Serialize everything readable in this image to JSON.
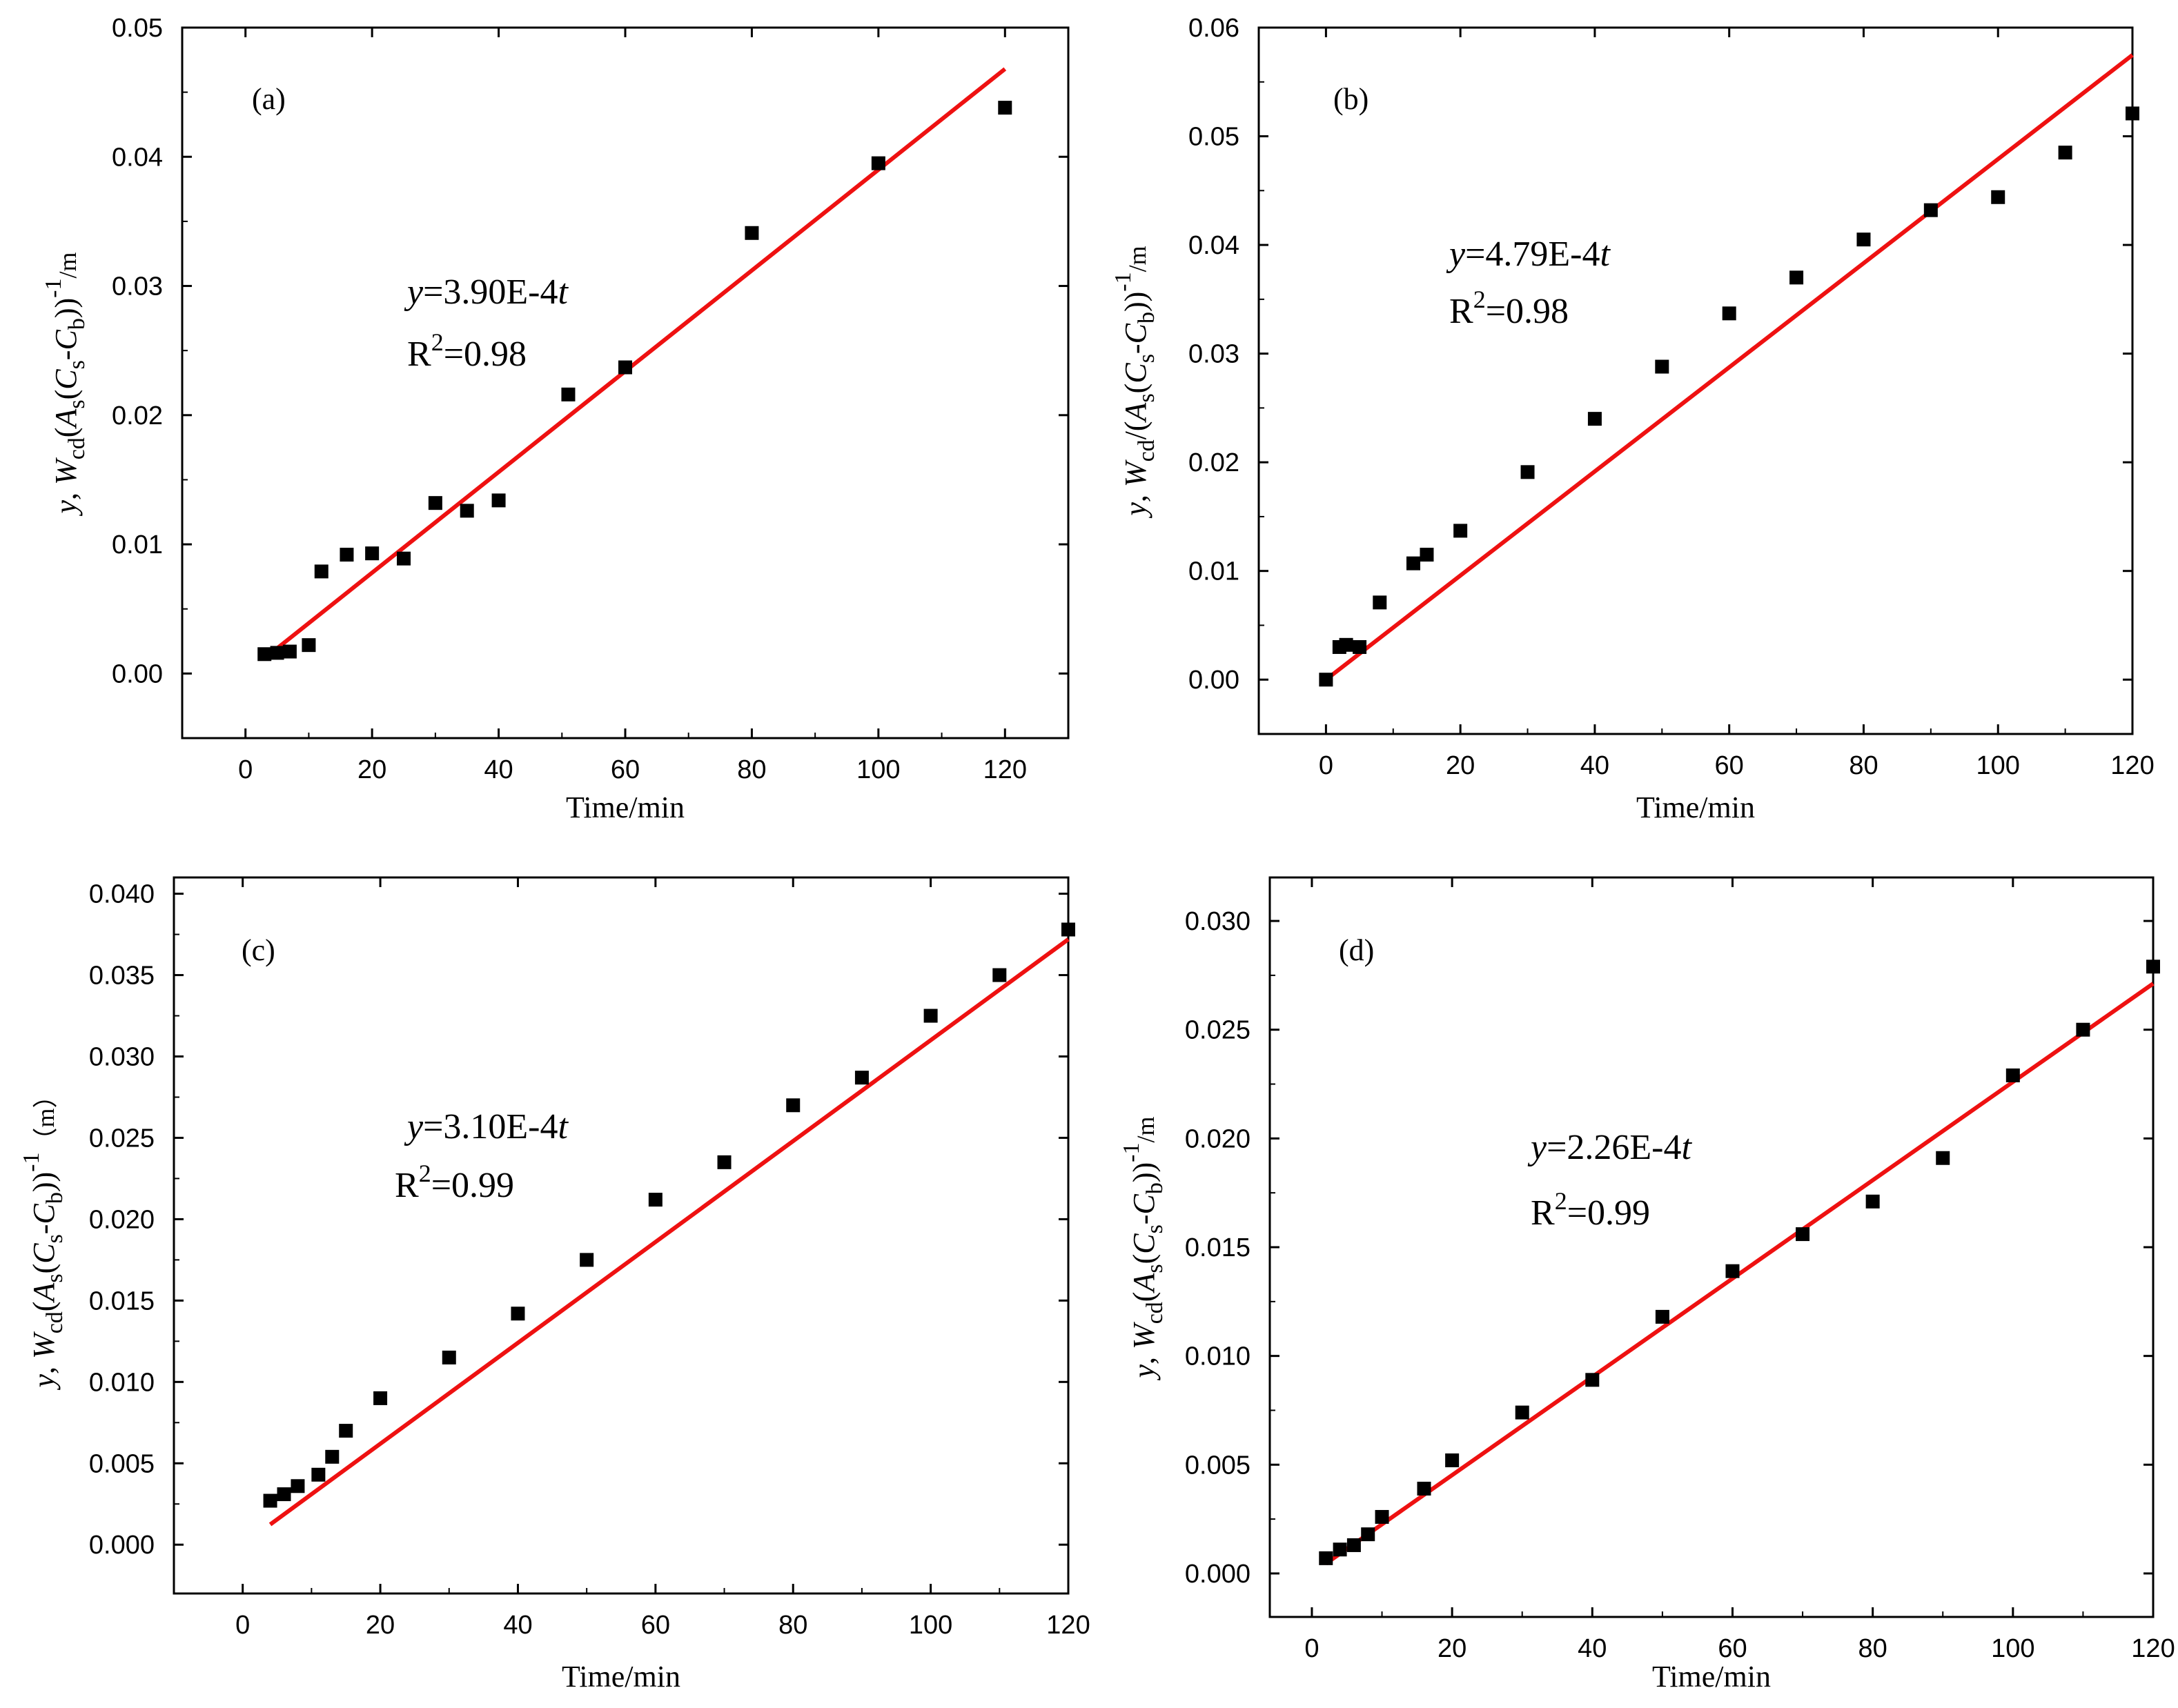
{
  "chart_data": [
    {
      "type": "scatter",
      "panel_label": "(a)",
      "xlabel": "Time/min",
      "ylabel": "y, W_cd(A_s(C_s-C_b))^-1/m",
      "xlim": [
        -10,
        130
      ],
      "ylim": [
        -0.005,
        0.05
      ],
      "x_ticks": [
        "0",
        "20",
        "40",
        "60",
        "80",
        "100",
        "120"
      ],
      "y_ticks": [
        "0.00",
        "0.01",
        "0.02",
        "0.03",
        "0.04",
        "0.05"
      ],
      "y_tick_values": [
        0,
        0.01,
        0.02,
        0.03,
        0.04,
        0.05
      ],
      "series": [
        {
          "name": "experimental",
          "x": [
            3,
            5,
            7,
            10,
            12,
            16,
            20,
            25,
            30,
            35,
            40,
            51,
            60,
            80,
            100,
            120
          ],
          "y": [
            0.0015,
            0.0016,
            0.0017,
            0.0022,
            0.0079,
            0.0092,
            0.0093,
            0.0089,
            0.0132,
            0.0126,
            0.0134,
            0.0216,
            0.0237,
            0.0341,
            0.0395,
            0.0438
          ]
        }
      ],
      "fit": {
        "name": "linear fit",
        "slope": 0.00039,
        "x_range": [
          3,
          120
        ],
        "color": "#ee1111"
      },
      "equation": {
        "y": "y",
        "rest": "=3.90E-4",
        "t": "t"
      },
      "r2": {
        "r": "R",
        "sup": "2",
        "rest": "=0.98"
      }
    },
    {
      "type": "scatter",
      "panel_label": "(b)",
      "xlabel": "Time/min",
      "ylabel": "y, W_cd/(A_s(C_s-C_b))^-1/m",
      "xlim": [
        -10,
        120
      ],
      "ylim": [
        -0.005,
        0.06
      ],
      "x_ticks": [
        "0",
        "20",
        "40",
        "60",
        "80",
        "100",
        "120"
      ],
      "y_ticks": [
        "0.00",
        "0.01",
        "0.02",
        "0.03",
        "0.04",
        "0.05",
        "0.06"
      ],
      "y_tick_values": [
        0,
        0.01,
        0.02,
        0.03,
        0.04,
        0.05,
        0.06
      ],
      "series": [
        {
          "name": "experimental",
          "x": [
            0,
            2,
            3,
            5,
            8,
            13,
            15,
            20,
            30,
            40,
            50,
            60,
            70,
            80,
            90,
            100,
            110,
            120
          ],
          "y": [
            0.0,
            0.003,
            0.0032,
            0.003,
            0.0071,
            0.0107,
            0.0115,
            0.0137,
            0.0191,
            0.024,
            0.0288,
            0.0337,
            0.037,
            0.0405,
            0.0432,
            0.0444,
            0.0485,
            0.0521
          ]
        }
      ],
      "fit": {
        "name": "linear fit",
        "slope": 0.000479,
        "x_range": [
          0,
          120
        ],
        "color": "#ee1111"
      },
      "equation": {
        "y": "y",
        "rest": "=4.79E-4",
        "t": "t"
      },
      "r2": {
        "r": "R",
        "sup": "2",
        "rest": "=0.98"
      }
    },
    {
      "type": "scatter",
      "panel_label": "(c)",
      "xlabel": "Time/min",
      "ylabel": "y, W_cd(A_s(C_s-C_b))^-1 (m)",
      "xlim": [
        -10,
        120
      ],
      "ylim": [
        -0.003,
        0.041
      ],
      "x_ticks": [
        "0",
        "20",
        "40",
        "60",
        "80",
        "100",
        "120"
      ],
      "y_ticks": [
        "0.000",
        "0.005",
        "0.010",
        "0.015",
        "0.020",
        "0.025",
        "0.030",
        "0.035",
        "0.040"
      ],
      "y_tick_values": [
        0,
        0.005,
        0.01,
        0.015,
        0.02,
        0.025,
        0.03,
        0.035,
        0.04
      ],
      "series": [
        {
          "name": "experimental",
          "x": [
            4,
            6,
            8,
            11,
            13,
            15,
            20,
            30,
            40,
            50,
            60,
            70,
            80,
            90,
            100,
            110,
            120
          ],
          "y": [
            0.0027,
            0.0031,
            0.0036,
            0.0043,
            0.0054,
            0.007,
            0.009,
            0.0115,
            0.0142,
            0.0175,
            0.0212,
            0.0235,
            0.027,
            0.0287,
            0.0325,
            0.035,
            0.0378
          ]
        }
      ],
      "fit": {
        "name": "linear fit",
        "slope": 0.00031,
        "x_range": [
          4,
          120
        ],
        "color": "#ee1111"
      },
      "equation": {
        "y": "y",
        "rest": "=3.10E-4",
        "t": "t"
      },
      "r2": {
        "r": "R",
        "sup": "2",
        "rest": "=0.99"
      }
    },
    {
      "type": "scatter",
      "panel_label": "(d)",
      "xlabel": "Time/min",
      "ylabel": "y, W_cd(A_s(C_s-C_b))^-1/m",
      "xlim": [
        -6,
        120
      ],
      "ylim": [
        -0.002,
        0.032
      ],
      "x_ticks": [
        "0",
        "20",
        "40",
        "60",
        "80",
        "100",
        "120"
      ],
      "y_ticks": [
        "0.000",
        "0.005",
        "0.010",
        "0.015",
        "0.020",
        "0.025",
        "0.030"
      ],
      "y_tick_values": [
        0,
        0.005,
        0.01,
        0.015,
        0.02,
        0.025,
        0.03
      ],
      "series": [
        {
          "name": "experimental",
          "x": [
            2,
            4,
            6,
            8,
            10,
            16,
            20,
            30,
            40,
            50,
            60,
            70,
            80,
            90,
            100,
            110,
            120
          ],
          "y": [
            0.0007,
            0.0011,
            0.0013,
            0.0018,
            0.0026,
            0.0039,
            0.0052,
            0.0074,
            0.0089,
            0.0118,
            0.0139,
            0.0156,
            0.0171,
            0.0191,
            0.0229,
            0.025,
            0.0279
          ]
        }
      ],
      "fit": {
        "name": "linear fit",
        "slope": 0.000226,
        "x_range": [
          2,
          120
        ],
        "color": "#ee1111"
      },
      "equation": {
        "y": "y",
        "rest": "=2.26E-4",
        "t": "t"
      },
      "r2": {
        "r": "R",
        "sup": "2",
        "rest": "=0.99"
      }
    }
  ],
  "ylabel_parts": [
    {
      "pre": "y, ",
      "W": "W",
      "cd": "cd",
      "mid": "(",
      "A": "A",
      "s1": "s",
      "open": "(",
      "C1": "C",
      "s2": "s",
      "dash": "-",
      "C2": "C",
      "b": "b",
      "close": "))",
      "sup": "-1",
      "unit": "/m"
    },
    {
      "pre": "y, ",
      "W": "W",
      "cd": "cd",
      "mid": "/(",
      "A": "A",
      "s1": "s",
      "open": "(",
      "C1": "C",
      "s2": "s",
      "dash": "-",
      "C2": "C",
      "b": "b",
      "close": "))",
      "sup": "-1",
      "unit": "/m"
    },
    {
      "pre": "y, ",
      "W": "W",
      "cd": "cd",
      "mid": "(",
      "A": "A",
      "s1": "s",
      "open": "(",
      "C1": "C",
      "s2": "s",
      "dash": "-",
      "C2": "C",
      "b": "b",
      "close": "))",
      "sup": "-1",
      "unit": "（m）"
    },
    {
      "pre": "y, ",
      "W": "W",
      "cd": "cd",
      "mid": "(",
      "A": "A",
      "s1": "s",
      "open": "(",
      "C1": "C",
      "s2": "s",
      "dash": "-",
      "C2": "C",
      "b": "b",
      "close": "))",
      "sup": "-1",
      "unit": "/m"
    }
  ],
  "colors": {
    "marker": "#000000",
    "fit": "#ee1111",
    "axis": "#000000"
  }
}
